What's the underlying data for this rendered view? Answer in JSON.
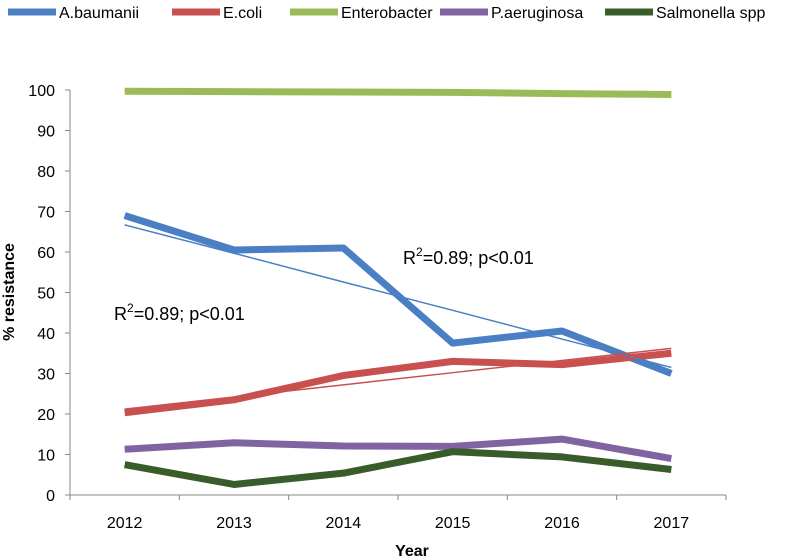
{
  "chart_data": {
    "type": "line",
    "x": [
      2012,
      2013,
      2014,
      2015,
      2016,
      2017
    ],
    "categories": [
      "2012",
      "2013",
      "2014",
      "2015",
      "2016",
      "2017"
    ],
    "series": [
      {
        "name": "A.baumanii",
        "color": "#4a7fc4",
        "values": [
          69,
          60.5,
          61,
          37.5,
          40.5,
          30
        ],
        "trend": [
          66.7,
          59.7,
          52.6,
          45.6,
          38.5,
          31.5
        ]
      },
      {
        "name": "E.coli",
        "color": "#c8504e",
        "values": [
          20.3,
          23.5,
          29.5,
          33,
          32.2,
          35
        ],
        "trend": [
          21.2,
          24.2,
          27.2,
          30.2,
          33.2,
          36.2
        ]
      },
      {
        "name": "Enterobacter",
        "color": "#9bbb59",
        "values": [
          99.7,
          99.6,
          99.5,
          99.4,
          99.1,
          98.9
        ],
        "trend": null
      },
      {
        "name": "P.aeruginosa",
        "color": "#8064a2",
        "values": [
          11.3,
          12.9,
          12.1,
          12,
          13.8,
          9
        ],
        "trend": null
      },
      {
        "name": "Salmonella spp",
        "color": "#385d2a",
        "values": [
          7.5,
          2.6,
          5.4,
          10.7,
          9.4,
          6.3
        ],
        "trend": null
      }
    ],
    "xlabel": "Year",
    "ylabel": "% resistance",
    "ylim": [
      0,
      100
    ],
    "yticks": [
      0,
      10,
      20,
      30,
      40,
      50,
      60,
      70,
      80,
      90,
      100
    ],
    "grid": false,
    "legend_position": "top",
    "annotations": [
      {
        "base": "R",
        "sup": "2",
        "rest": "=0.89; p<0.01",
        "near": "A.baumanii"
      },
      {
        "base": "R",
        "sup": "2",
        "rest": "=0.89; p<0.01",
        "near": "E.coli"
      }
    ]
  }
}
